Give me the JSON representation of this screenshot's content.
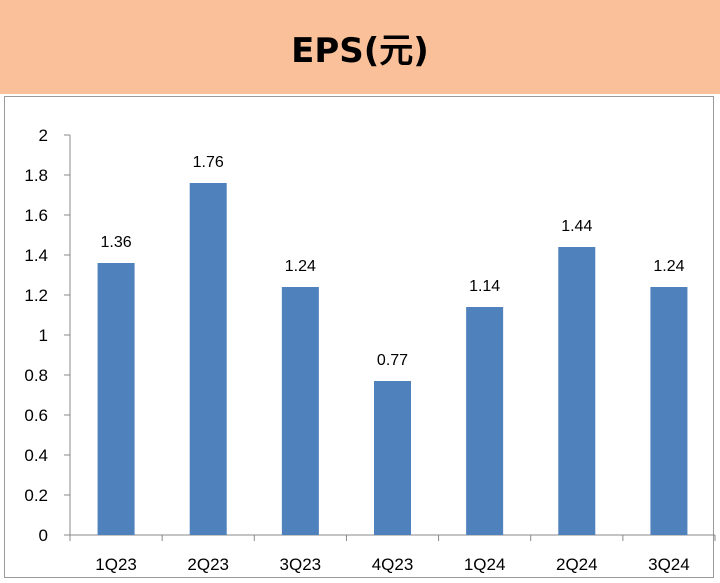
{
  "chart_data": {
    "type": "bar",
    "title": "EPS(元)",
    "categories": [
      "1Q23",
      "2Q23",
      "3Q23",
      "4Q23",
      "1Q24",
      "2Q24",
      "3Q24"
    ],
    "values": [
      1.36,
      1.76,
      1.24,
      0.77,
      1.14,
      1.44,
      1.24
    ],
    "data_labels": [
      "1.36",
      "1.76",
      "1.24",
      "0.77",
      "1.14",
      "1.44",
      "1.24"
    ],
    "yticks": [
      "0",
      "0.2",
      "0.4",
      "0.6",
      "0.8",
      "1",
      "1.2",
      "1.4",
      "1.6",
      "1.8",
      "2"
    ],
    "ylim": [
      0,
      2
    ],
    "grid": false,
    "legend": "none",
    "bar_color": "#4f81bd",
    "header_color": "#f9c09a"
  }
}
